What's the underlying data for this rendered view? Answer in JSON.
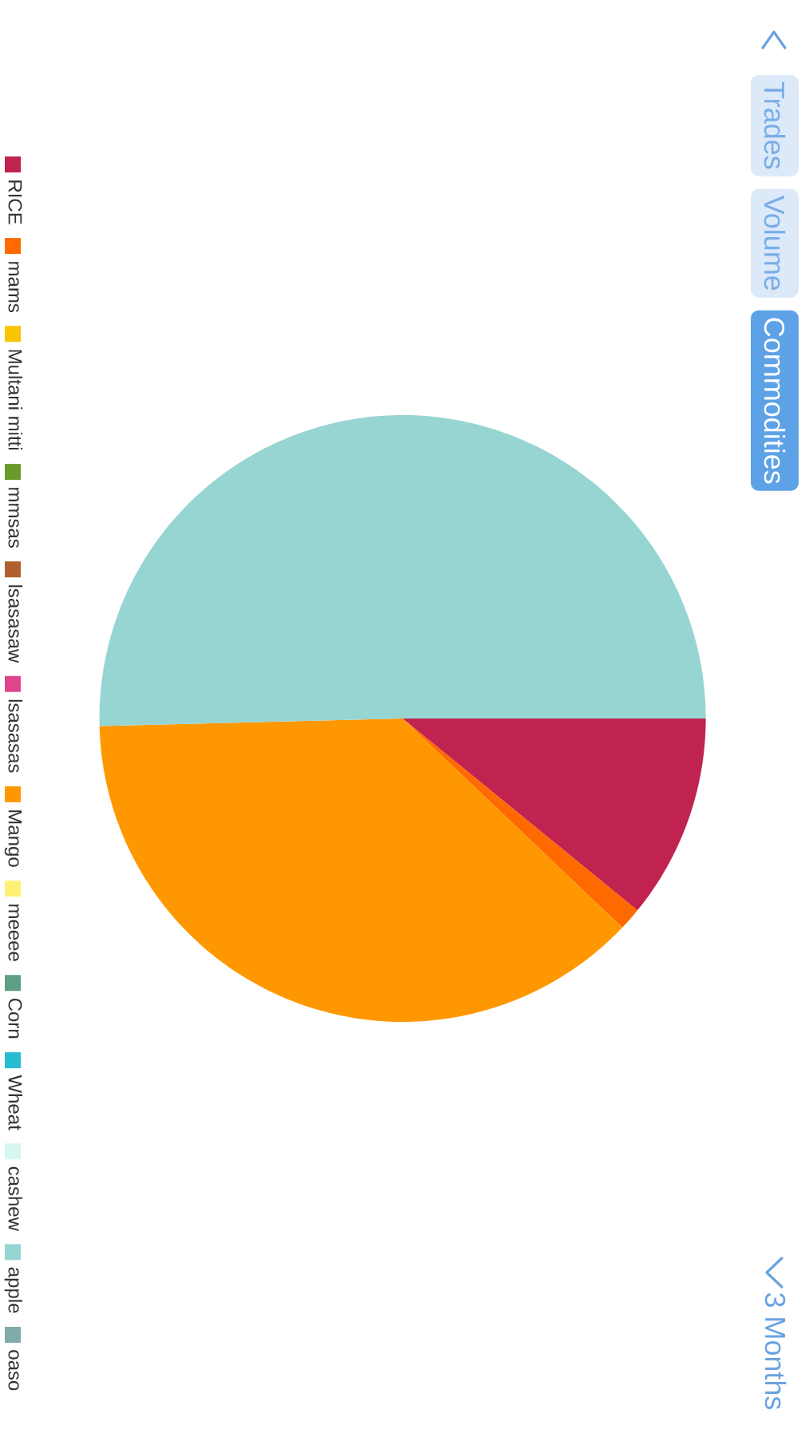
{
  "chart_data": {
    "type": "pie",
    "categories": [
      "RICE",
      "mams",
      "Multani mitti",
      "mmsas",
      "lsasasaw",
      "lsasasas",
      "Mango",
      "meeee",
      "Corn",
      "Wheat",
      "cashew",
      "apple",
      "oaso"
    ],
    "values": [
      10.9,
      1.2,
      0,
      0,
      0,
      0,
      37.5,
      0,
      0,
      0,
      0,
      50.4,
      0
    ],
    "colors": [
      "#c0234f",
      "#ff6a00",
      "#f7c600",
      "#6a9a2a",
      "#b0602e",
      "#e0458c",
      "#ff9800",
      "#fff176",
      "#5e9e85",
      "#26bcd1",
      "#d5f7f0",
      "#97d5d3",
      "#80aba9"
    ],
    "legend": "left",
    "annotations": [
      "Trades",
      "Volume",
      "Commodities",
      "3 Months"
    ]
  }
}
